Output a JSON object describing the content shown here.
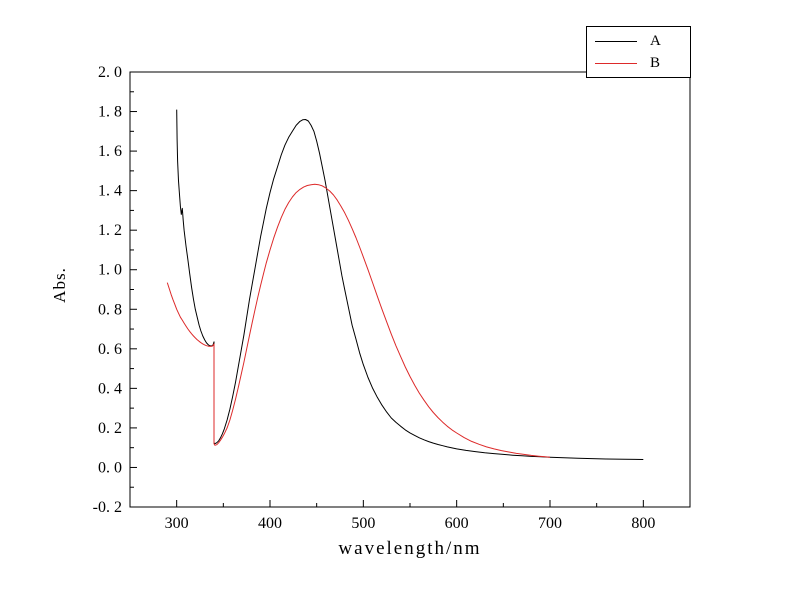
{
  "figure": {
    "background": "#ffffff"
  },
  "chart_data": {
    "type": "line",
    "xlabel": "wavelength/nm",
    "ylabel": "Abs.",
    "xlim": [
      250,
      850
    ],
    "ylim": [
      -0.2,
      2.0
    ],
    "grid": false,
    "legend_position": "top-right",
    "x_minor_step": 50,
    "y_minor_step": 0.1,
    "xticks": [
      {
        "v": 300,
        "label": "300"
      },
      {
        "v": 400,
        "label": "400"
      },
      {
        "v": 500,
        "label": "500"
      },
      {
        "v": 600,
        "label": "600"
      },
      {
        "v": 700,
        "label": "700"
      },
      {
        "v": 800,
        "label": "800"
      }
    ],
    "yticks": [
      {
        "v": 2.0,
        "label": "2. 0"
      },
      {
        "v": 1.8,
        "label": "1. 8"
      },
      {
        "v": 1.6,
        "label": "1. 6"
      },
      {
        "v": 1.4,
        "label": "1. 4"
      },
      {
        "v": 1.2,
        "label": "1. 2"
      },
      {
        "v": 1.0,
        "label": "1. 0"
      },
      {
        "v": 0.8,
        "label": "0. 8"
      },
      {
        "v": 0.6,
        "label": "0. 6"
      },
      {
        "v": 0.4,
        "label": "0. 4"
      },
      {
        "v": 0.2,
        "label": "0. 2"
      },
      {
        "v": 0.0,
        "label": "0. 0"
      },
      {
        "v": -0.2,
        "label": "-0. 2"
      }
    ],
    "series": [
      {
        "name": "A",
        "color": "#000000",
        "points": [
          [
            300,
            1.81
          ],
          [
            300.5,
            1.66
          ],
          [
            301,
            1.55
          ],
          [
            302,
            1.45
          ],
          [
            303,
            1.38
          ],
          [
            304,
            1.32
          ],
          [
            305,
            1.28
          ],
          [
            306,
            1.31
          ],
          [
            307,
            1.25
          ],
          [
            308,
            1.2
          ],
          [
            310,
            1.12
          ],
          [
            312,
            1.05
          ],
          [
            314,
            0.98
          ],
          [
            316,
            0.91
          ],
          [
            318,
            0.85
          ],
          [
            320,
            0.8
          ],
          [
            322,
            0.76
          ],
          [
            324,
            0.72
          ],
          [
            326,
            0.69
          ],
          [
            328,
            0.665
          ],
          [
            330,
            0.645
          ],
          [
            332,
            0.63
          ],
          [
            334,
            0.62
          ],
          [
            336,
            0.615
          ],
          [
            338,
            0.615
          ],
          [
            339,
            0.62
          ],
          [
            340,
            0.635
          ],
          [
            340,
            0.125
          ],
          [
            341,
            0.12
          ],
          [
            343,
            0.125
          ],
          [
            345,
            0.135
          ],
          [
            347,
            0.15
          ],
          [
            349,
            0.17
          ],
          [
            351,
            0.195
          ],
          [
            354,
            0.24
          ],
          [
            357,
            0.295
          ],
          [
            360,
            0.36
          ],
          [
            363,
            0.43
          ],
          [
            366,
            0.51
          ],
          [
            369,
            0.59
          ],
          [
            372,
            0.67
          ],
          [
            375,
            0.76
          ],
          [
            378,
            0.85
          ],
          [
            381,
            0.93
          ],
          [
            384,
            1.01
          ],
          [
            387,
            1.09
          ],
          [
            390,
            1.17
          ],
          [
            393,
            1.24
          ],
          [
            396,
            1.31
          ],
          [
            400,
            1.39
          ],
          [
            404,
            1.46
          ],
          [
            408,
            1.52
          ],
          [
            412,
            1.58
          ],
          [
            416,
            1.63
          ],
          [
            420,
            1.67
          ],
          [
            424,
            1.7
          ],
          [
            428,
            1.73
          ],
          [
            432,
            1.75
          ],
          [
            435,
            1.758
          ],
          [
            438,
            1.76
          ],
          [
            441,
            1.752
          ],
          [
            444,
            1.73
          ],
          [
            447,
            1.7
          ],
          [
            450,
            1.65
          ],
          [
            453,
            1.59
          ],
          [
            456,
            1.52
          ],
          [
            459,
            1.45
          ],
          [
            462,
            1.37
          ],
          [
            465,
            1.29
          ],
          [
            468,
            1.21
          ],
          [
            471,
            1.13
          ],
          [
            474,
            1.05
          ],
          [
            477,
            0.97
          ],
          [
            480,
            0.9
          ],
          [
            484,
            0.81
          ],
          [
            488,
            0.72
          ],
          [
            492,
            0.65
          ],
          [
            496,
            0.58
          ],
          [
            500,
            0.52
          ],
          [
            505,
            0.455
          ],
          [
            510,
            0.4
          ],
          [
            515,
            0.355
          ],
          [
            520,
            0.315
          ],
          [
            525,
            0.28
          ],
          [
            530,
            0.25
          ],
          [
            535,
            0.228
          ],
          [
            540,
            0.208
          ],
          [
            545,
            0.19
          ],
          [
            550,
            0.175
          ],
          [
            555,
            0.162
          ],
          [
            560,
            0.15
          ],
          [
            565,
            0.14
          ],
          [
            570,
            0.131
          ],
          [
            575,
            0.123
          ],
          [
            580,
            0.116
          ],
          [
            585,
            0.11
          ],
          [
            590,
            0.104
          ],
          [
            595,
            0.099
          ],
          [
            600,
            0.094
          ],
          [
            610,
            0.086
          ],
          [
            620,
            0.08
          ],
          [
            630,
            0.074
          ],
          [
            640,
            0.07
          ],
          [
            650,
            0.066
          ],
          [
            660,
            0.062
          ],
          [
            670,
            0.059
          ],
          [
            680,
            0.056
          ],
          [
            690,
            0.054
          ],
          [
            700,
            0.052
          ],
          [
            715,
            0.049
          ],
          [
            730,
            0.047
          ],
          [
            745,
            0.045
          ],
          [
            760,
            0.043
          ],
          [
            780,
            0.041
          ],
          [
            800,
            0.04
          ]
        ]
      },
      {
        "name": "B",
        "color": "#dd2a2a",
        "points": [
          [
            290,
            0.935
          ],
          [
            292,
            0.905
          ],
          [
            294,
            0.875
          ],
          [
            296,
            0.85
          ],
          [
            298,
            0.825
          ],
          [
            300,
            0.8
          ],
          [
            302,
            0.78
          ],
          [
            304,
            0.76
          ],
          [
            306,
            0.745
          ],
          [
            308,
            0.73
          ],
          [
            310,
            0.715
          ],
          [
            312,
            0.7
          ],
          [
            314,
            0.688
          ],
          [
            316,
            0.676
          ],
          [
            318,
            0.665
          ],
          [
            320,
            0.655
          ],
          [
            322,
            0.646
          ],
          [
            324,
            0.638
          ],
          [
            326,
            0.631
          ],
          [
            328,
            0.625
          ],
          [
            330,
            0.62
          ],
          [
            332,
            0.616
          ],
          [
            334,
            0.613
          ],
          [
            336,
            0.612
          ],
          [
            338,
            0.613
          ],
          [
            339,
            0.617
          ],
          [
            340,
            0.625
          ],
          [
            340,
            0.12
          ],
          [
            341,
            0.112
          ],
          [
            343,
            0.115
          ],
          [
            345,
            0.125
          ],
          [
            347,
            0.138
          ],
          [
            349,
            0.153
          ],
          [
            351,
            0.17
          ],
          [
            354,
            0.2
          ],
          [
            357,
            0.24
          ],
          [
            360,
            0.29
          ],
          [
            363,
            0.345
          ],
          [
            366,
            0.405
          ],
          [
            369,
            0.468
          ],
          [
            372,
            0.532
          ],
          [
            375,
            0.6
          ],
          [
            378,
            0.668
          ],
          [
            381,
            0.735
          ],
          [
            384,
            0.8
          ],
          [
            387,
            0.863
          ],
          [
            390,
            0.923
          ],
          [
            393,
            0.98
          ],
          [
            396,
            1.035
          ],
          [
            400,
            1.1
          ],
          [
            404,
            1.16
          ],
          [
            408,
            1.215
          ],
          [
            412,
            1.263
          ],
          [
            416,
            1.305
          ],
          [
            420,
            1.34
          ],
          [
            424,
            1.368
          ],
          [
            428,
            1.39
          ],
          [
            432,
            1.406
          ],
          [
            436,
            1.418
          ],
          [
            440,
            1.426
          ],
          [
            444,
            1.43
          ],
          [
            448,
            1.432
          ],
          [
            452,
            1.43
          ],
          [
            456,
            1.424
          ],
          [
            460,
            1.413
          ],
          [
            464,
            1.398
          ],
          [
            468,
            1.378
          ],
          [
            472,
            1.352
          ],
          [
            476,
            1.322
          ],
          [
            480,
            1.288
          ],
          [
            484,
            1.25
          ],
          [
            488,
            1.208
          ],
          [
            492,
            1.163
          ],
          [
            496,
            1.115
          ],
          [
            500,
            1.065
          ],
          [
            505,
            1.0
          ],
          [
            510,
            0.933
          ],
          [
            515,
            0.866
          ],
          [
            520,
            0.8
          ],
          [
            525,
            0.736
          ],
          [
            530,
            0.674
          ],
          [
            535,
            0.615
          ],
          [
            540,
            0.56
          ],
          [
            545,
            0.508
          ],
          [
            550,
            0.46
          ],
          [
            555,
            0.416
          ],
          [
            560,
            0.376
          ],
          [
            565,
            0.34
          ],
          [
            570,
            0.307
          ],
          [
            575,
            0.278
          ],
          [
            580,
            0.252
          ],
          [
            585,
            0.229
          ],
          [
            590,
            0.208
          ],
          [
            595,
            0.19
          ],
          [
            600,
            0.174
          ],
          [
            608,
            0.151
          ],
          [
            616,
            0.132
          ],
          [
            624,
            0.117
          ],
          [
            632,
            0.104
          ],
          [
            640,
            0.094
          ],
          [
            648,
            0.085
          ],
          [
            656,
            0.078
          ],
          [
            664,
            0.071
          ],
          [
            672,
            0.066
          ],
          [
            680,
            0.061
          ],
          [
            688,
            0.057
          ],
          [
            695,
            0.054
          ],
          [
            700,
            0.052
          ]
        ]
      }
    ]
  }
}
